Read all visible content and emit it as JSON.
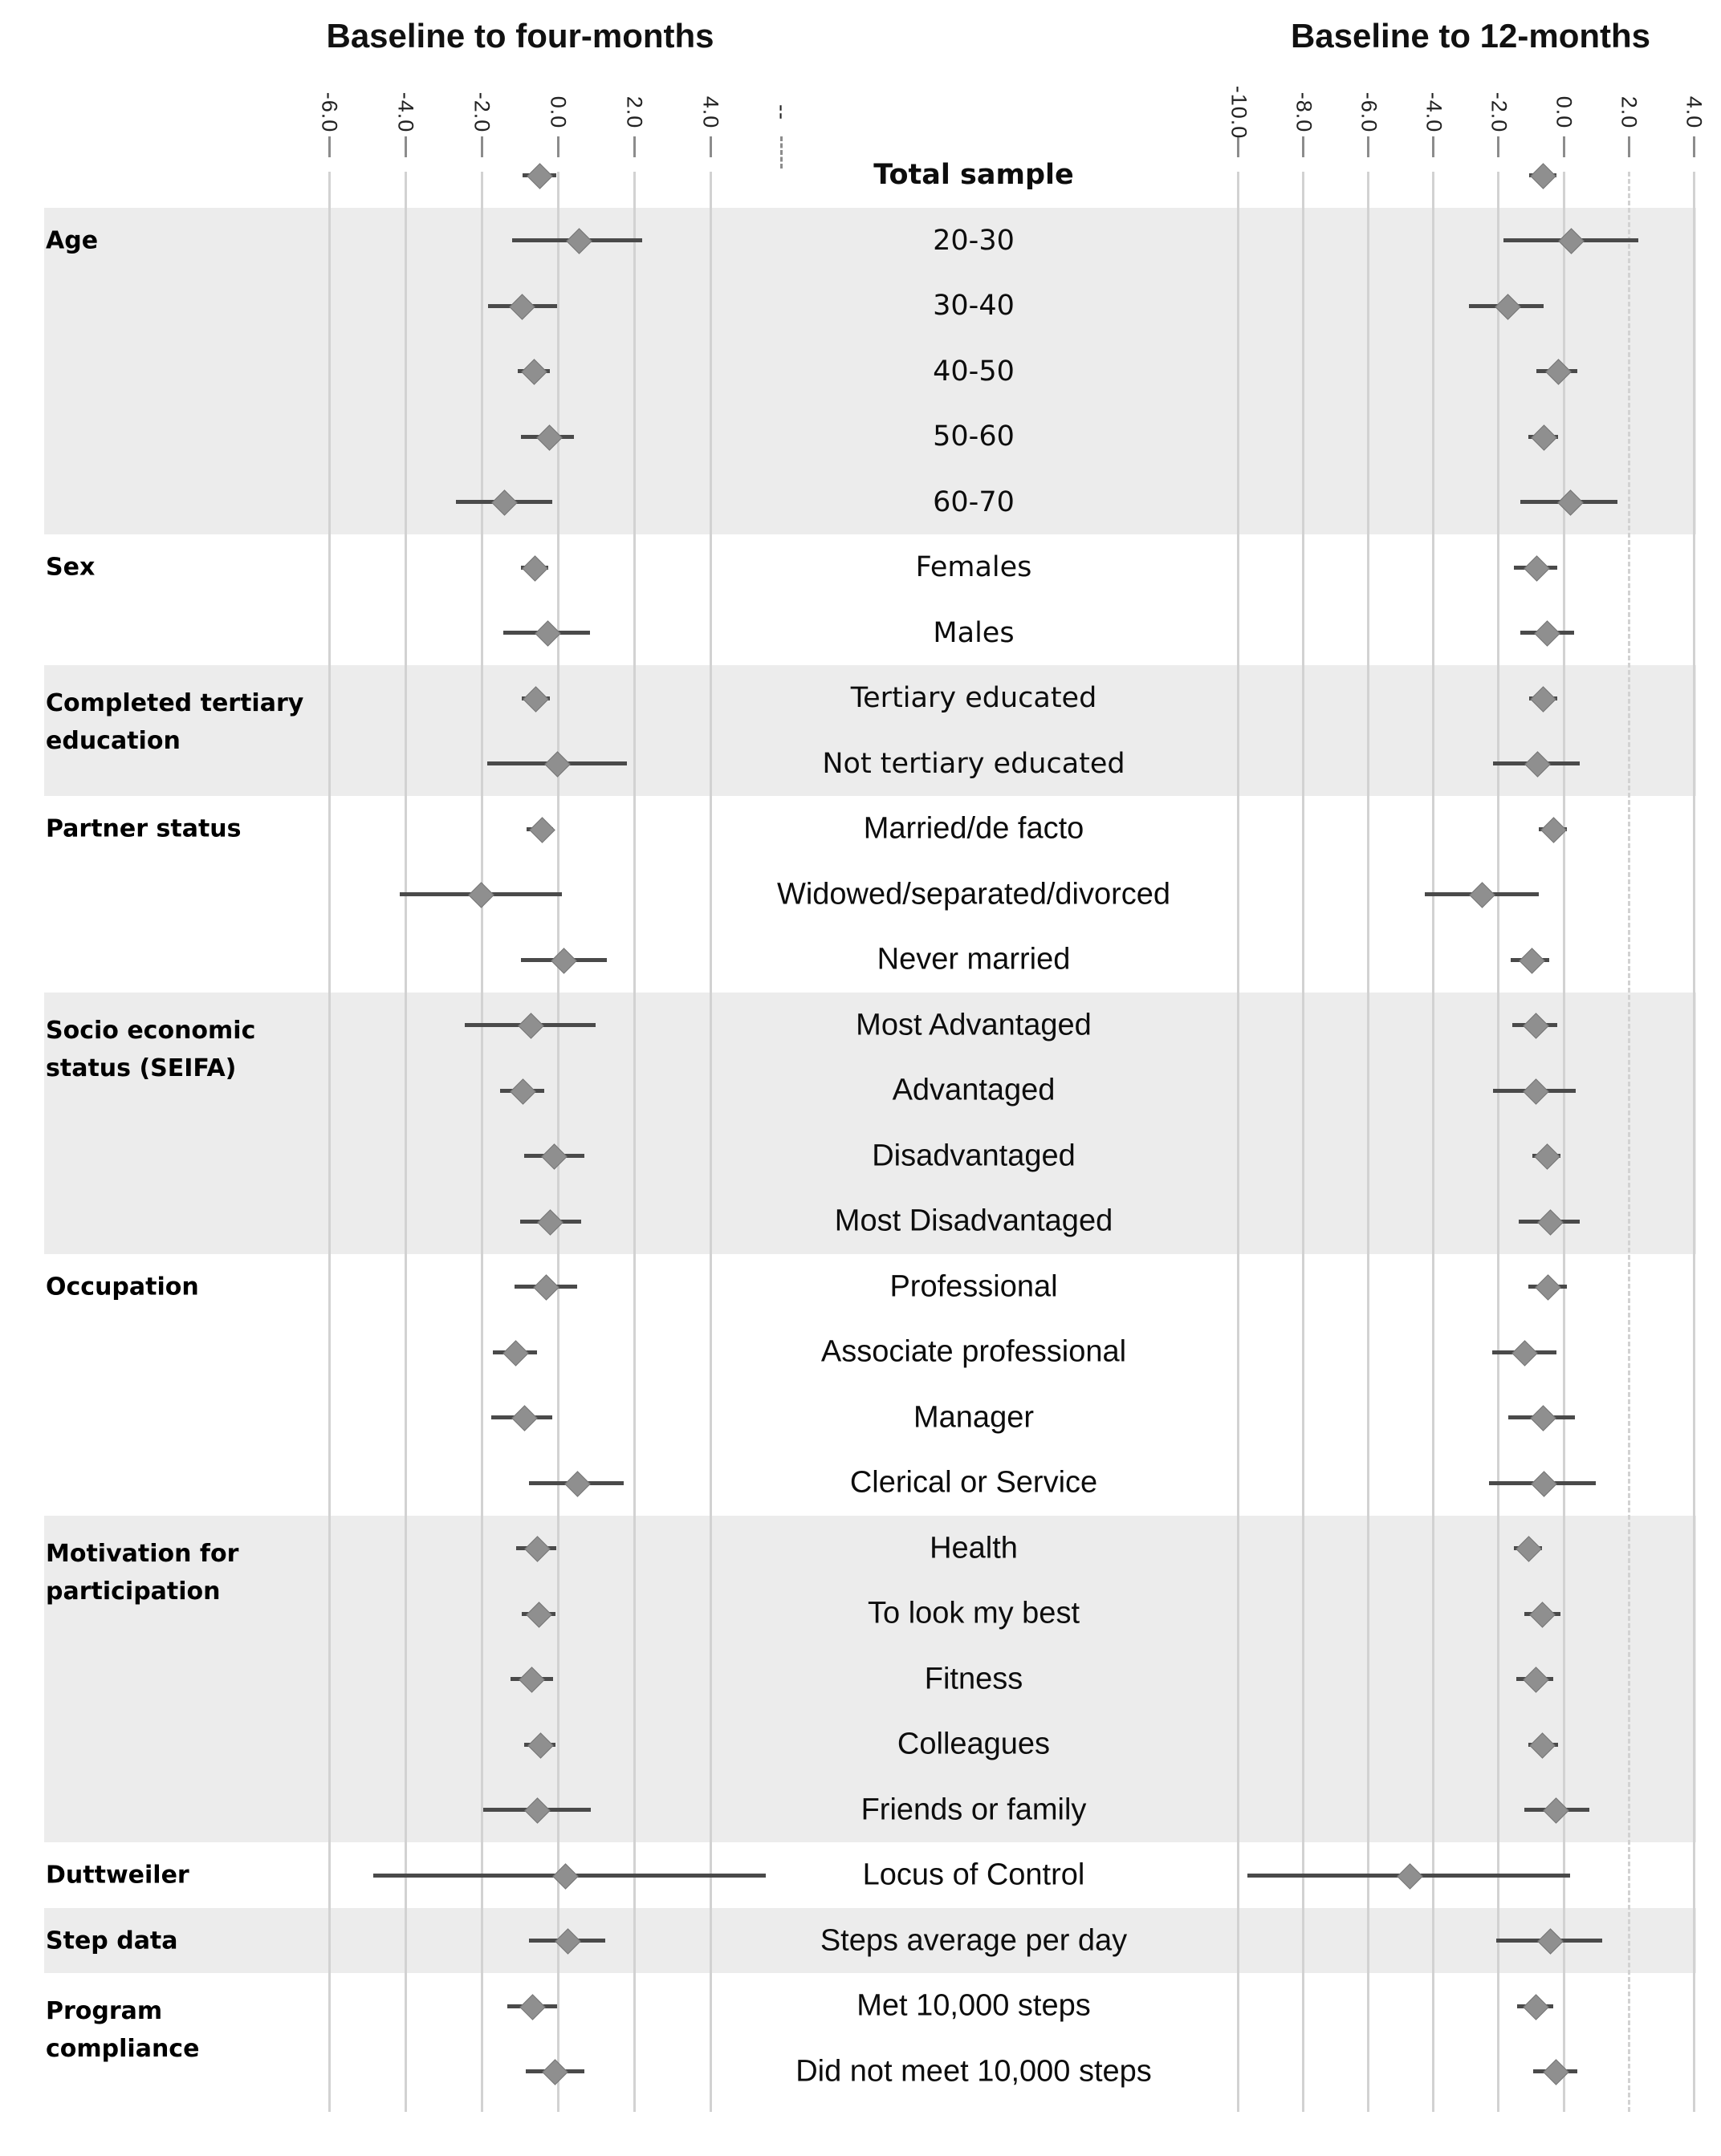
{
  "figure": {
    "panels": [
      {
        "id": "four_months",
        "title": "Baseline to four-months",
        "ticks": [
          {
            "label": "-6.0",
            "value": -6
          },
          {
            "label": "-4.0",
            "value": -4
          },
          {
            "label": "-2.0",
            "value": -2
          },
          {
            "label": "0.0",
            "value": 0
          },
          {
            "label": "2.0",
            "value": 2
          },
          {
            "label": "4.0",
            "value": 4
          },
          {
            "label": "--",
            "value": 5.87,
            "axis_break": true
          }
        ]
      },
      {
        "id": "twelve_months",
        "title": "Baseline to 12-months",
        "ticks": [
          {
            "label": "-10.0",
            "value": -10
          },
          {
            "label": "-8.0",
            "value": -8
          },
          {
            "label": "-6.0",
            "value": -6
          },
          {
            "label": "-4.0",
            "value": -4
          },
          {
            "label": "-2.0",
            "value": -2
          },
          {
            "label": "0.0",
            "value": 0
          },
          {
            "label": "2.0",
            "value": 2,
            "dashed": true
          },
          {
            "label": "4.0",
            "value": 4
          }
        ]
      }
    ],
    "sections": [
      {
        "label_lines": [],
        "shaded": false,
        "start": 0,
        "end": 0
      },
      {
        "label_lines": [
          "Age"
        ],
        "shaded": true,
        "start": 1,
        "end": 5
      },
      {
        "label_lines": [
          "Sex"
        ],
        "shaded": false,
        "start": 6,
        "end": 7
      },
      {
        "label_lines": [
          "Completed tertiary",
          "education"
        ],
        "shaded": true,
        "start": 8,
        "end": 9
      },
      {
        "label_lines": [
          "Partner status"
        ],
        "shaded": false,
        "start": 10,
        "end": 12
      },
      {
        "label_lines": [
          "Socio economic",
          "status (SEIFA)"
        ],
        "shaded": true,
        "start": 13,
        "end": 16
      },
      {
        "label_lines": [
          "Occupation"
        ],
        "shaded": false,
        "start": 17,
        "end": 20
      },
      {
        "label_lines": [
          "Motivation for",
          "participation"
        ],
        "shaded": true,
        "start": 21,
        "end": 25
      },
      {
        "label_lines": [
          "Duttweiler"
        ],
        "shaded": false,
        "start": 26,
        "end": 26
      },
      {
        "label_lines": [
          "Step data"
        ],
        "shaded": true,
        "start": 27,
        "end": 27
      },
      {
        "label_lines": [
          "Program",
          "compliance"
        ],
        "shaded": false,
        "start": 28,
        "end": 29
      }
    ]
  },
  "chart_data": {
    "type": "forest",
    "title": "",
    "grid": true,
    "tick_label_rotation_deg": 90,
    "panel_xlim": {
      "four_months": [
        -6.8,
        6.2
      ],
      "twelve_months": [
        -10.8,
        4.5
      ]
    },
    "series": [
      {
        "name": "Baseline to four-months"
      },
      {
        "name": "Baseline to 12-months"
      }
    ],
    "rows": [
      {
        "label": "Total sample",
        "bold": true,
        "section": "",
        "four_months": {
          "est": -0.5,
          "lo": -0.93,
          "hi": -0.05
        },
        "twelve_months": {
          "est": -0.65,
          "lo": -1.05,
          "hi": -0.22
        }
      },
      {
        "label": "20-30",
        "bold": false,
        "section": "Age",
        "four_months": {
          "est": 0.54,
          "lo": -1.21,
          "hi": 2.22
        },
        "twelve_months": {
          "est": 0.2,
          "lo": -1.85,
          "hi": 2.3
        }
      },
      {
        "label": "30-40",
        "bold": false,
        "section": "Age",
        "four_months": {
          "est": -0.96,
          "lo": -1.84,
          "hi": -0.03
        },
        "twelve_months": {
          "est": -1.75,
          "lo": -2.9,
          "hi": -0.62
        }
      },
      {
        "label": "40-50",
        "bold": false,
        "section": "Age",
        "four_months": {
          "est": -0.64,
          "lo": -1.06,
          "hi": -0.2
        },
        "twelve_months": {
          "est": -0.18,
          "lo": -0.83,
          "hi": 0.43
        }
      },
      {
        "label": "50-60",
        "bold": false,
        "section": "Age",
        "four_months": {
          "est": -0.25,
          "lo": -0.96,
          "hi": 0.42
        },
        "twelve_months": {
          "est": -0.62,
          "lo": -1.08,
          "hi": -0.18
        }
      },
      {
        "label": "60-70",
        "bold": false,
        "section": "Age",
        "four_months": {
          "est": -1.43,
          "lo": -2.68,
          "hi": -0.15
        },
        "twelve_months": {
          "est": 0.19,
          "lo": -1.32,
          "hi": 1.65
        }
      },
      {
        "label": "Females",
        "bold": false,
        "section": "Sex",
        "four_months": {
          "est": -0.63,
          "lo": -0.97,
          "hi": -0.25
        },
        "twelve_months": {
          "est": -0.86,
          "lo": -1.52,
          "hi": -0.2
        }
      },
      {
        "label": "Males",
        "bold": false,
        "section": "Sex",
        "four_months": {
          "est": -0.28,
          "lo": -1.43,
          "hi": 0.85
        },
        "twelve_months": {
          "est": -0.53,
          "lo": -1.32,
          "hi": 0.33
        }
      },
      {
        "label": "Tertiary educated",
        "bold": false,
        "section": "Completed tertiary education",
        "four_months": {
          "est": -0.61,
          "lo": -0.94,
          "hi": -0.21
        },
        "twelve_months": {
          "est": -0.66,
          "lo": -1.05,
          "hi": -0.2
        }
      },
      {
        "label": "Not tertiary educated",
        "bold": false,
        "section": "Completed tertiary education",
        "four_months": {
          "est": -0.04,
          "lo": -1.85,
          "hi": 1.81
        },
        "twelve_months": {
          "est": -0.83,
          "lo": -2.18,
          "hi": 0.5
        }
      },
      {
        "label": "Married/de facto",
        "bold": false,
        "section": "Partner status",
        "four_months": {
          "est": -0.44,
          "lo": -0.82,
          "hi": -0.12
        },
        "twelve_months": {
          "est": -0.33,
          "lo": -0.77,
          "hi": 0.11
        }
      },
      {
        "label": "Widowed/separated/divorced",
        "bold": false,
        "section": "Partner status",
        "four_months": {
          "est": -2.04,
          "lo": -4.15,
          "hi": 0.1
        },
        "twelve_months": {
          "est": -2.53,
          "lo": -4.27,
          "hi": -0.77
        }
      },
      {
        "label": "Never married",
        "bold": false,
        "section": "Partner status",
        "four_months": {
          "est": 0.14,
          "lo": -0.96,
          "hi": 1.29
        },
        "twelve_months": {
          "est": -0.99,
          "lo": -1.63,
          "hi": -0.44
        }
      },
      {
        "label": "Most Advantaged",
        "bold": false,
        "section": "Socio economic status (SEIFA)",
        "four_months": {
          "est": -0.72,
          "lo": -2.45,
          "hi": 0.99
        },
        "twelve_months": {
          "est": -0.88,
          "lo": -1.57,
          "hi": -0.2
        }
      },
      {
        "label": "Advantaged",
        "bold": false,
        "section": "Socio economic status (SEIFA)",
        "four_months": {
          "est": -0.94,
          "lo": -1.52,
          "hi": -0.35
        },
        "twelve_months": {
          "est": -0.88,
          "lo": -2.18,
          "hi": 0.37
        }
      },
      {
        "label": "Disadvantaged",
        "bold": false,
        "section": "Socio economic status (SEIFA)",
        "four_months": {
          "est": -0.12,
          "lo": -0.89,
          "hi": 0.69
        },
        "twelve_months": {
          "est": -0.53,
          "lo": -0.97,
          "hi": -0.09
        }
      },
      {
        "label": "Most Disadvantaged",
        "bold": false,
        "section": "Socio economic status (SEIFA)",
        "four_months": {
          "est": -0.22,
          "lo": -0.99,
          "hi": 0.61
        },
        "twelve_months": {
          "est": -0.42,
          "lo": -1.38,
          "hi": 0.5
        }
      },
      {
        "label": "Professional",
        "bold": false,
        "section": "Occupation",
        "four_months": {
          "est": -0.33,
          "lo": -1.13,
          "hi": 0.5
        },
        "twelve_months": {
          "est": -0.5,
          "lo": -1.08,
          "hi": 0.11
        }
      },
      {
        "label": "Associate professional",
        "bold": false,
        "section": "Occupation",
        "four_months": {
          "est": -1.13,
          "lo": -1.71,
          "hi": -0.54
        },
        "twelve_months": {
          "est": -1.21,
          "lo": -2.2,
          "hi": -0.22
        }
      },
      {
        "label": "Manager",
        "bold": false,
        "section": "Occupation",
        "four_months": {
          "est": -0.89,
          "lo": -1.74,
          "hi": -0.14
        },
        "twelve_months": {
          "est": -0.66,
          "lo": -1.69,
          "hi": 0.35
        }
      },
      {
        "label": "Clerical or Service",
        "bold": false,
        "section": "Occupation",
        "four_months": {
          "est": 0.5,
          "lo": -0.75,
          "hi": 1.72
        },
        "twelve_months": {
          "est": -0.64,
          "lo": -2.29,
          "hi": 0.99
        }
      },
      {
        "label": "Health",
        "bold": false,
        "section": "Motivation for participation",
        "four_months": {
          "est": -0.56,
          "lo": -1.1,
          "hi": -0.05
        },
        "twelve_months": {
          "est": -1.1,
          "lo": -1.52,
          "hi": -0.66
        }
      },
      {
        "label": "To look my best",
        "bold": false,
        "section": "Motivation for participation",
        "four_months": {
          "est": -0.52,
          "lo": -0.94,
          "hi": -0.07
        },
        "twelve_months": {
          "est": -0.69,
          "lo": -1.21,
          "hi": -0.09
        }
      },
      {
        "label": "Fitness",
        "bold": false,
        "section": "Motivation for participation",
        "four_months": {
          "est": -0.71,
          "lo": -1.24,
          "hi": -0.12
        },
        "twelve_months": {
          "est": -0.88,
          "lo": -1.46,
          "hi": -0.31
        }
      },
      {
        "label": "Colleagues",
        "bold": false,
        "section": "Motivation for participation",
        "four_months": {
          "est": -0.47,
          "lo": -0.89,
          "hi": -0.07
        },
        "twelve_months": {
          "est": -0.69,
          "lo": -1.08,
          "hi": -0.17
        }
      },
      {
        "label": "Friends or family",
        "bold": false,
        "section": "Motivation for participation",
        "four_months": {
          "est": -0.56,
          "lo": -1.95,
          "hi": 0.87
        },
        "twelve_months": {
          "est": -0.25,
          "lo": -1.21,
          "hi": 0.79
        }
      },
      {
        "label": "Locus of Control",
        "bold": false,
        "section": "Duttweiler",
        "four_months": {
          "est": 0.17,
          "lo": -4.85,
          "hi": 5.45
        },
        "twelve_months": {
          "est": -4.74,
          "lo": -9.72,
          "hi": 0.19
        }
      },
      {
        "label": "Steps average per day",
        "bold": false,
        "section": "Step data",
        "four_months": {
          "est": 0.25,
          "lo": -0.75,
          "hi": 1.25
        },
        "twelve_months": {
          "est": -0.42,
          "lo": -2.07,
          "hi": 1.18
        }
      },
      {
        "label": "Met 10,000 steps",
        "bold": false,
        "section": "Program compliance",
        "four_months": {
          "est": -0.69,
          "lo": -1.32,
          "hi": -0.03
        },
        "twelve_months": {
          "est": -0.88,
          "lo": -1.43,
          "hi": -0.31
        }
      },
      {
        "label": "Did not meet 10,000 steps",
        "bold": false,
        "section": "Program compliance",
        "four_months": {
          "est": -0.09,
          "lo": -0.85,
          "hi": 0.69
        },
        "twelve_months": {
          "est": -0.25,
          "lo": -0.94,
          "hi": 0.41
        }
      }
    ]
  },
  "colors": {
    "band": "#ececec",
    "gridline": "#d2d2d2",
    "tick_mark": "#8c8c8c",
    "ci_line": "#4a4a4a",
    "diamond": "#8f8f8f",
    "diamond_border": "#757575",
    "text": "#111111"
  }
}
